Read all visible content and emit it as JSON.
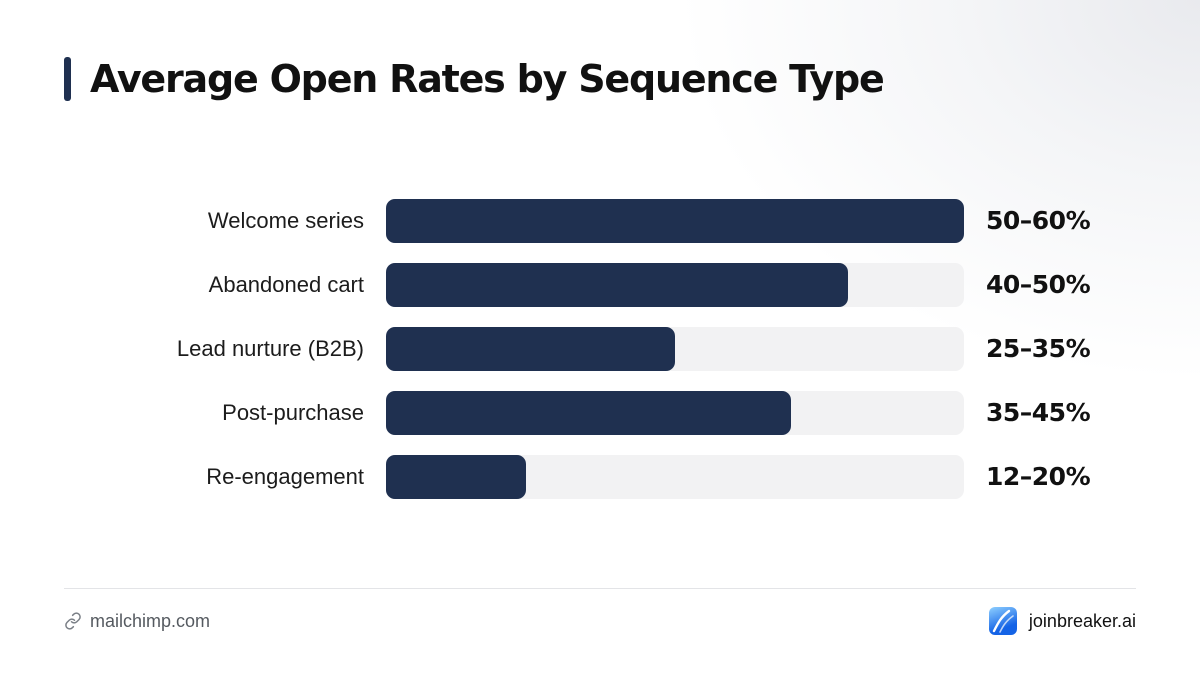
{
  "title": "Average Open Rates by Sequence Type",
  "colors": {
    "accent": "#1f3050",
    "bar": "#1f3050",
    "track": "#f2f2f3",
    "brand_logo_top": "#8fd0ff",
    "brand_logo_bottom": "#1463e6"
  },
  "chart_data": {
    "type": "bar",
    "orientation": "horizontal",
    "title": "Average Open Rates by Sequence Type",
    "categories": [
      "Welcome series",
      "Abandoned cart",
      "Lead nurture (B2B)",
      "Post-purchase",
      "Re-engagement"
    ],
    "values": [
      60,
      48,
      30,
      42,
      14.5
    ],
    "value_labels": [
      "50–60%",
      "40–50%",
      "25–35%",
      "35–45%",
      "12–20%"
    ],
    "xlim": [
      0,
      60
    ],
    "grid": false
  },
  "footer": {
    "source": "mailchimp.com",
    "source_icon": "link-icon",
    "brand": "joinbreaker.ai",
    "brand_icon": "breaker-logo-icon"
  }
}
